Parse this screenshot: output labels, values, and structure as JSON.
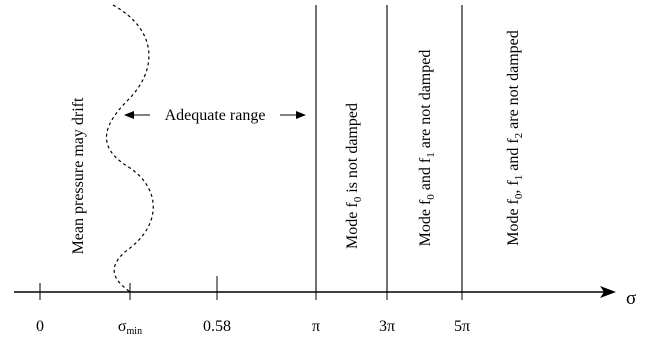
{
  "axis": {
    "variable": "σ",
    "ticks": [
      {
        "key": "zero",
        "label": "0"
      },
      {
        "key": "sigma-min",
        "label": "σ",
        "sub": "min"
      },
      {
        "key": "058",
        "label": "0.58"
      },
      {
        "key": "pi",
        "label": "π"
      },
      {
        "key": "3pi",
        "label": "3π"
      },
      {
        "key": "5pi",
        "label": "5π"
      }
    ]
  },
  "regions": {
    "drift": "Mean pressure may drift",
    "adequate": "Adequate range",
    "mode_f0": {
      "pre": "Mode f",
      "sub1": "0",
      "post": " is not damped"
    },
    "mode_f0_f1": {
      "pre": "Mode f",
      "sub1": "0",
      "mid": " and f",
      "sub2": "1",
      "post": "  are not damped"
    },
    "mode_f0_f1_f2": {
      "pre": "Mode f",
      "sub1": "0",
      "mid1": ", f",
      "sub2": "1",
      "mid2": " and  f",
      "sub3": "2",
      "post": " are not damped"
    }
  },
  "colors": {
    "ink": "#000000",
    "background": "#ffffff"
  }
}
